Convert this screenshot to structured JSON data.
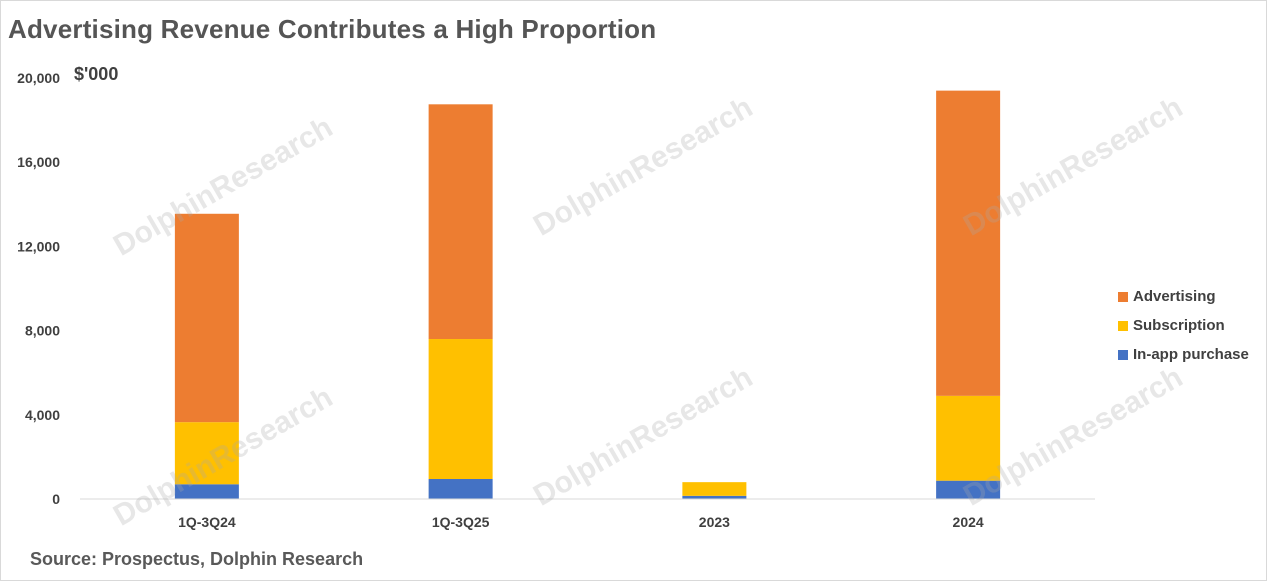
{
  "title": "Advertising Revenue Contributes a High Proportion",
  "unit": "$'000",
  "source": "Source:  Prospectus, Dolphin Research",
  "watermark": "DolphinResearch",
  "colors": {
    "advertising": "#ED7D31",
    "subscription": "#FFC000",
    "in_app_purchase": "#4472C4",
    "axis": "#d9d9d9"
  },
  "chart_data": {
    "type": "bar",
    "stacked": true,
    "categories": [
      "1Q-3Q24",
      "1Q-3Q25",
      "2023",
      "2024"
    ],
    "series": [
      {
        "name": "In-app purchase",
        "color": "#4472C4",
        "values": [
          700,
          950,
          150,
          870
        ]
      },
      {
        "name": "Subscription",
        "color": "#FFC000",
        "values": [
          2950,
          6650,
          650,
          4030
        ]
      },
      {
        "name": "Advertising",
        "color": "#ED7D31",
        "values": [
          9900,
          11150,
          0,
          14500
        ]
      }
    ],
    "ylim": [
      0,
      20000
    ],
    "yticks": [
      "0",
      "4,000",
      "8,000",
      "12,000",
      "16,000",
      "20,000"
    ],
    "ytick_values": [
      0,
      4000,
      8000,
      12000,
      16000,
      20000
    ],
    "grid": false,
    "legend_position": "right"
  }
}
